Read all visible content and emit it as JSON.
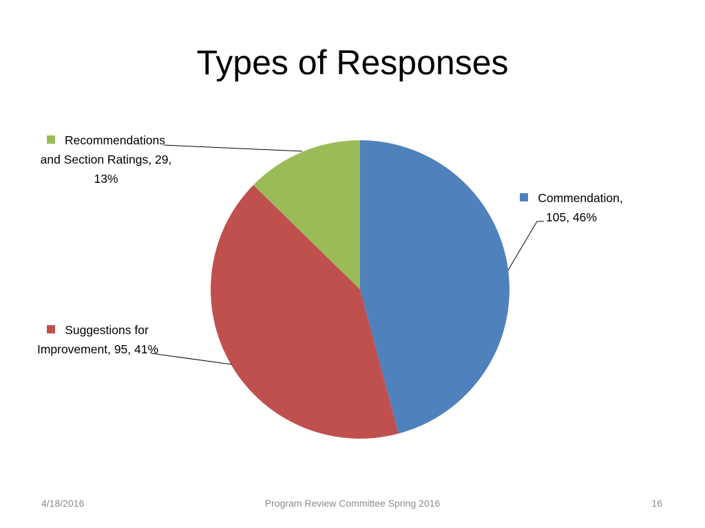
{
  "title": "Types of Responses",
  "chart_data": {
    "type": "pie",
    "categories": [
      "Commendation",
      "Suggestions for Improvement",
      "Recommendations and Section Ratings"
    ],
    "values": [
      105,
      95,
      29
    ],
    "percentages": [
      46,
      41,
      13
    ],
    "percent_labels": [
      "46%",
      "41%",
      "13%"
    ],
    "label_separator": ", ",
    "colors": [
      "#4f81bd",
      "#c0504d",
      "#9bbb59"
    ]
  },
  "footer": {
    "date": "4/18/2016",
    "text": "Program Review Committee Spring 2016",
    "page": 16
  }
}
